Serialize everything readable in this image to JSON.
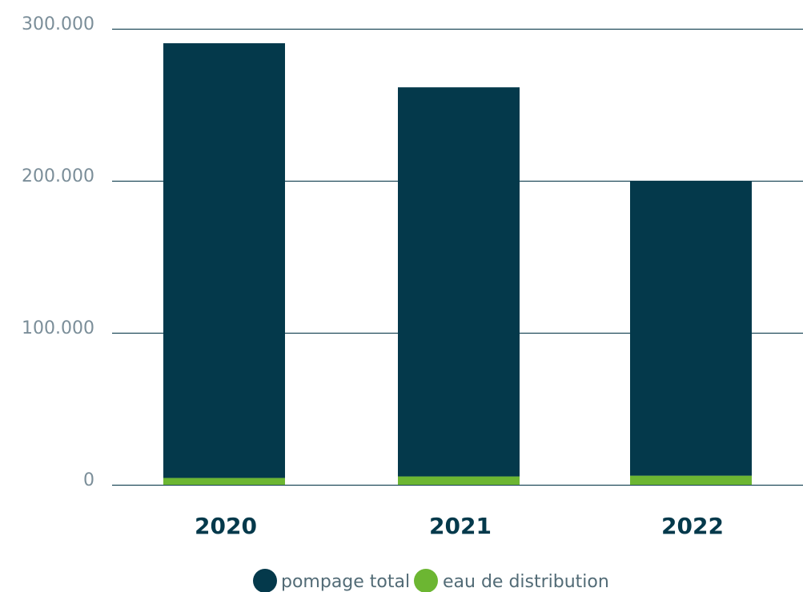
{
  "chart_data": {
    "type": "bar",
    "stacked": true,
    "categories": [
      "2020",
      "2021",
      "2022"
    ],
    "series": [
      {
        "name": "eau de distribution",
        "color": "#6cb632",
        "values": [
          4500,
          5500,
          6000
        ]
      },
      {
        "name": "pompage total",
        "color": "#04394b",
        "values": [
          286000,
          256000,
          194000
        ]
      }
    ],
    "ylim": [
      0,
      300000
    ],
    "yticks": [
      0,
      100000,
      200000,
      300000
    ],
    "ytick_labels": [
      "0",
      "100.000",
      "200.000",
      "300.000"
    ],
    "grid": true,
    "legend": {
      "position": "bottom-center",
      "entries": [
        "pompage total",
        "eau de distribution"
      ]
    },
    "title": "",
    "xlabel": "",
    "ylabel": ""
  },
  "colors": {
    "gridline": "#1f4a5a",
    "axis_text": "#7b8e99",
    "category_text": "#04394b"
  }
}
